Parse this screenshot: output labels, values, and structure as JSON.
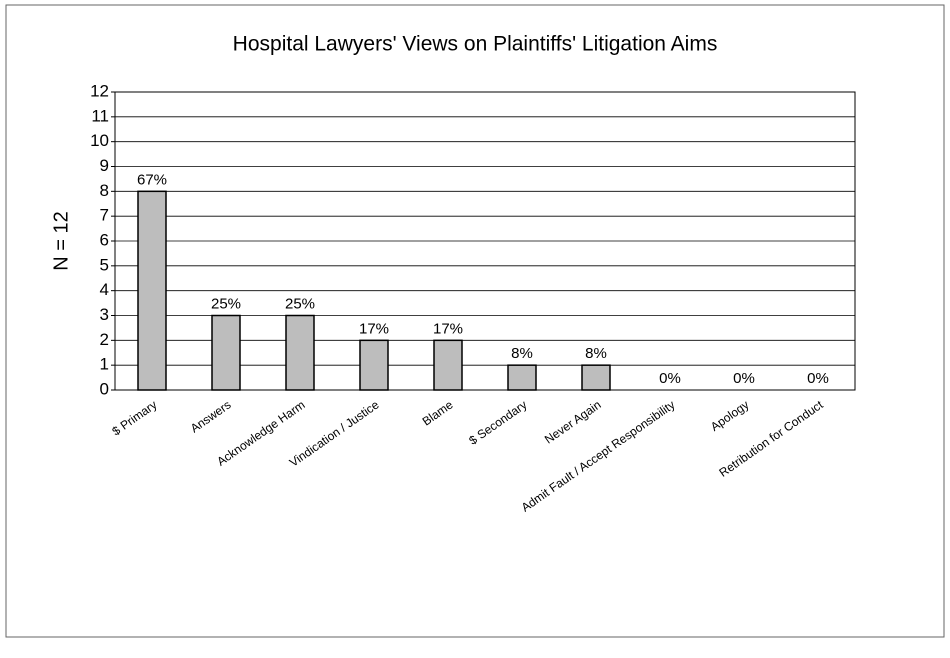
{
  "chart_data": {
    "type": "bar",
    "title": "Hospital Lawyers' Views on Plaintiffs' Litigation Aims",
    "y_label": "N = 12",
    "categories": [
      "$ Primary",
      "Answers",
      "Acknowledge Harm",
      "Vindication / Justice",
      "Blame",
      "$ Secondary",
      "Never Again",
      "Admit Fault / Accept Responsibility",
      "Apology",
      "Retribution for Conduct"
    ],
    "values": [
      8,
      3,
      3,
      2,
      2,
      1,
      1,
      0,
      0,
      0
    ],
    "value_labels": [
      "67%",
      "25%",
      "25%",
      "17%",
      "17%",
      "8%",
      "8%",
      "0%",
      "0%",
      "0%"
    ],
    "color": "#bdbdbd",
    "ylim": [
      0,
      12
    ],
    "yticks": [
      0,
      1,
      2,
      3,
      4,
      5,
      6,
      7,
      8,
      9,
      10,
      11,
      12
    ],
    "grid": true
  }
}
